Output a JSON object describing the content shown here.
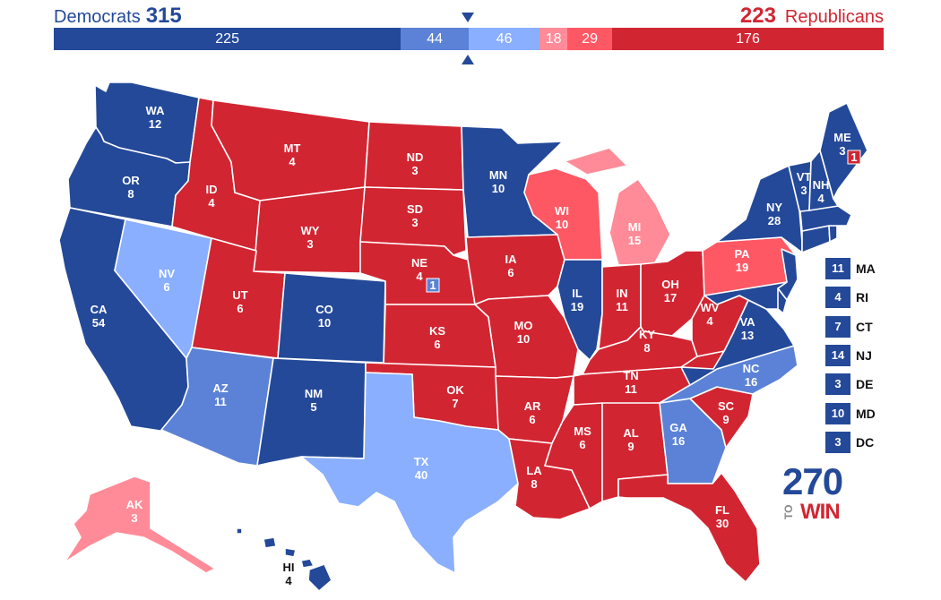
{
  "header": {
    "dem_label": "Democrats",
    "dem_total": "315",
    "rep_total": "223",
    "rep_label": "Republicans"
  },
  "bar_segments": [
    {
      "value": 225,
      "color": "#244999"
    },
    {
      "value": 44,
      "color": "#5b82d6"
    },
    {
      "value": 46,
      "color": "#8aafff"
    },
    {
      "value": 18,
      "color": "#ff8b98"
    },
    {
      "value": 29,
      "color": "#ff5865"
    },
    {
      "value": 176,
      "color": "#d22532"
    }
  ],
  "colors": {
    "safe_d": "#244999",
    "likely_d": "#5b82d6",
    "lean_d": "#8aafff",
    "lean_r": "#ff8b98",
    "likely_r": "#ff5865",
    "safe_r": "#d22532"
  },
  "states": {
    "WA": {
      "abbr": "WA",
      "ev": "12"
    },
    "OR": {
      "abbr": "OR",
      "ev": "8"
    },
    "CA": {
      "abbr": "CA",
      "ev": "54"
    },
    "NV": {
      "abbr": "NV",
      "ev": "6"
    },
    "ID": {
      "abbr": "ID",
      "ev": "4"
    },
    "MT": {
      "abbr": "MT",
      "ev": "4"
    },
    "WY": {
      "abbr": "WY",
      "ev": "3"
    },
    "UT": {
      "abbr": "UT",
      "ev": "6"
    },
    "CO": {
      "abbr": "CO",
      "ev": "10"
    },
    "AZ": {
      "abbr": "AZ",
      "ev": "11"
    },
    "NM": {
      "abbr": "NM",
      "ev": "5"
    },
    "ND": {
      "abbr": "ND",
      "ev": "3"
    },
    "SD": {
      "abbr": "SD",
      "ev": "3"
    },
    "NE": {
      "abbr": "NE",
      "ev": "4"
    },
    "NE2": {
      "ev": "1"
    },
    "KS": {
      "abbr": "KS",
      "ev": "6"
    },
    "OK": {
      "abbr": "OK",
      "ev": "7"
    },
    "TX": {
      "abbr": "TX",
      "ev": "40"
    },
    "MN": {
      "abbr": "MN",
      "ev": "10"
    },
    "IA": {
      "abbr": "IA",
      "ev": "6"
    },
    "MO": {
      "abbr": "MO",
      "ev": "10"
    },
    "AR": {
      "abbr": "AR",
      "ev": "6"
    },
    "LA": {
      "abbr": "LA",
      "ev": "8"
    },
    "WI": {
      "abbr": "WI",
      "ev": "10"
    },
    "IL": {
      "abbr": "IL",
      "ev": "19"
    },
    "MI": {
      "abbr": "MI",
      "ev": "15"
    },
    "IN": {
      "abbr": "IN",
      "ev": "11"
    },
    "OH": {
      "abbr": "OH",
      "ev": "17"
    },
    "KY": {
      "abbr": "KY",
      "ev": "8"
    },
    "TN": {
      "abbr": "TN",
      "ev": "11"
    },
    "MS": {
      "abbr": "MS",
      "ev": "6"
    },
    "AL": {
      "abbr": "AL",
      "ev": "9"
    },
    "GA": {
      "abbr": "GA",
      "ev": "16"
    },
    "FL": {
      "abbr": "FL",
      "ev": "30"
    },
    "SC": {
      "abbr": "SC",
      "ev": "9"
    },
    "NC": {
      "abbr": "NC",
      "ev": "16"
    },
    "VA": {
      "abbr": "VA",
      "ev": "13"
    },
    "WV": {
      "abbr": "WV",
      "ev": "4"
    },
    "PA": {
      "abbr": "PA",
      "ev": "19"
    },
    "NY": {
      "abbr": "NY",
      "ev": "28"
    },
    "VT": {
      "abbr": "VT",
      "ev": "3"
    },
    "NH": {
      "abbr": "NH",
      "ev": "4"
    },
    "ME": {
      "abbr": "ME",
      "ev": "3"
    },
    "ME2": {
      "ev": "1"
    },
    "AK": {
      "abbr": "AK",
      "ev": "3"
    },
    "HI": {
      "abbr": "HI",
      "ev": "4"
    }
  },
  "northeast_list": [
    {
      "ev": "11",
      "abbr": "MA"
    },
    {
      "ev": "4",
      "abbr": "RI"
    },
    {
      "ev": "7",
      "abbr": "CT"
    },
    {
      "ev": "14",
      "abbr": "NJ"
    },
    {
      "ev": "3",
      "abbr": "DE"
    },
    {
      "ev": "10",
      "abbr": "MD"
    },
    {
      "ev": "3",
      "abbr": "DC"
    }
  ],
  "logo": {
    "number": "270",
    "to": "TO",
    "win": "WIN"
  }
}
